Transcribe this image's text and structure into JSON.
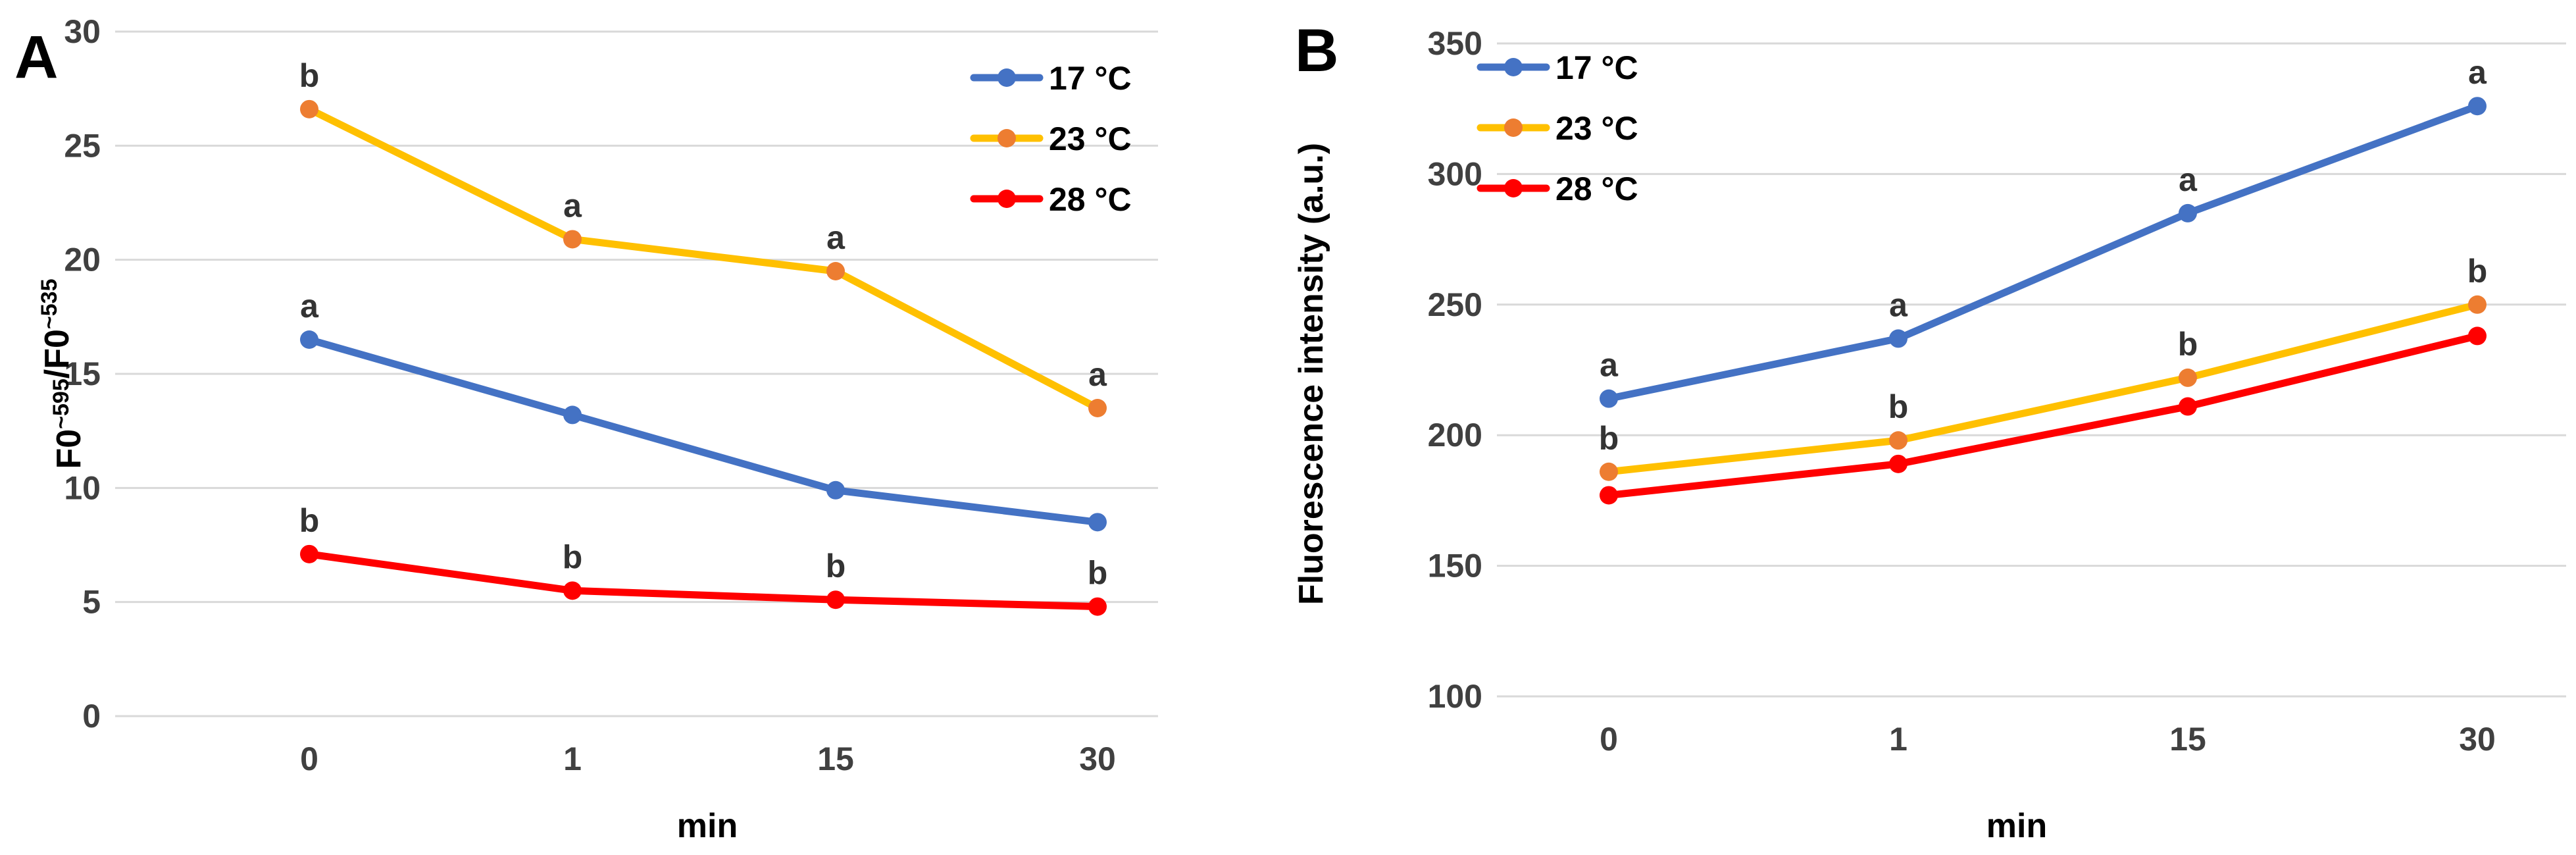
{
  "chart_data": [
    {
      "type": "line",
      "panel_label": "A",
      "categories": [
        "0",
        "1",
        "15",
        "30"
      ],
      "xlabel": "min",
      "ylabel": "F0~595/F0~535",
      "ylim": [
        0,
        30
      ],
      "yticks": [
        "0",
        "5",
        "10",
        "15",
        "20",
        "25",
        "30"
      ],
      "grid": true,
      "legend": "top-right",
      "series": [
        {
          "name": "17 °C",
          "color": "#4472C4",
          "marker_color": "#4472C4",
          "values": [
            16.5,
            13.2,
            9.9,
            8.5
          ],
          "labels": [
            "a",
            "",
            "",
            ""
          ]
        },
        {
          "name": "23 °C",
          "color": "#FFC000",
          "marker_color": "#ED7D31",
          "values": [
            26.6,
            20.9,
            19.5,
            13.5
          ],
          "labels": [
            "b",
            "a",
            "a",
            "a"
          ]
        },
        {
          "name": "28 °C",
          "color": "#FF0000",
          "marker_color": "#FF0000",
          "values": [
            7.1,
            5.5,
            5.1,
            4.8
          ],
          "labels": [
            "b",
            "b",
            "b",
            "b"
          ]
        }
      ]
    },
    {
      "type": "line",
      "panel_label": "B",
      "categories": [
        "0",
        "1",
        "15",
        "30"
      ],
      "xlabel": "min",
      "ylabel": "Fluorescence intensity (a.u.)",
      "ylim": [
        100,
        350
      ],
      "yticks": [
        "100",
        "150",
        "200",
        "250",
        "300",
        "350"
      ],
      "grid": true,
      "legend": "top-left",
      "series": [
        {
          "name": "17 °C",
          "color": "#4472C4",
          "marker_color": "#4472C4",
          "values": [
            214,
            237,
            285,
            326
          ],
          "labels": [
            "a",
            "a",
            "a",
            "a"
          ]
        },
        {
          "name": "23 °C",
          "color": "#FFC000",
          "marker_color": "#ED7D31",
          "values": [
            186,
            198,
            222,
            250
          ],
          "labels": [
            "b",
            "b",
            "b",
            "b"
          ]
        },
        {
          "name": "28 °C",
          "color": "#FF0000",
          "marker_color": "#FF0000",
          "values": [
            177,
            189,
            211,
            238
          ],
          "labels": [
            "",
            "",
            "",
            ""
          ]
        }
      ]
    }
  ]
}
